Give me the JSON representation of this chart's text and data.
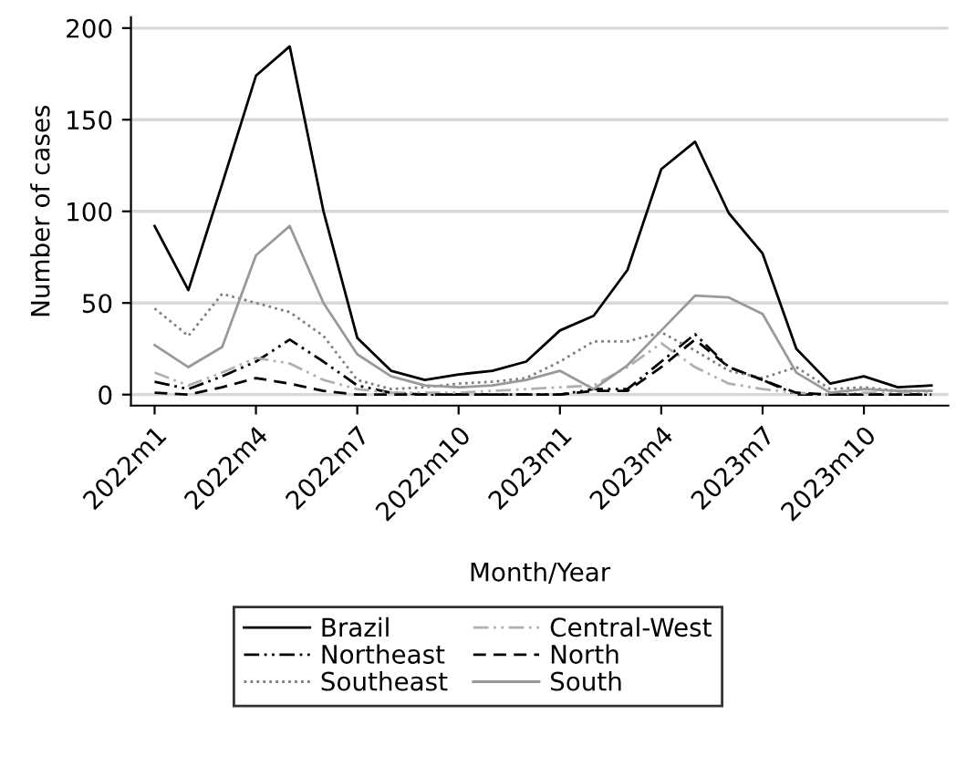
{
  "chart_data": {
    "type": "line",
    "xlabel": "Month/Year",
    "ylabel": "Number of cases",
    "categories": [
      "2022m1",
      null,
      null,
      "2022m4",
      null,
      null,
      "2022m7",
      null,
      null,
      "2022m10",
      null,
      null,
      "2023m1",
      null,
      null,
      "2023m4",
      null,
      null,
      "2023m7",
      null,
      null,
      "2023m10",
      null,
      null
    ],
    "series": [
      {
        "name": "Brazil",
        "color": "#000000",
        "line_style": "solid",
        "values": [
          92,
          57,
          115,
          174,
          190,
          100,
          31,
          13,
          8,
          11,
          13,
          18,
          35,
          43,
          68,
          123,
          138,
          99,
          77,
          25,
          6,
          10,
          4,
          5
        ]
      },
      {
        "name": "Northeast",
        "color": "#000000",
        "line_style": "dashdot",
        "values": [
          7,
          3,
          10,
          18,
          30,
          18,
          5,
          1,
          0,
          0,
          0,
          0,
          0,
          3,
          3,
          18,
          33,
          15,
          8,
          0,
          0,
          0,
          0,
          0
        ]
      },
      {
        "name": "Southeast",
        "color": "#808080",
        "line_style": "dotted",
        "values": [
          47,
          32,
          55,
          50,
          45,
          32,
          8,
          3,
          4,
          6,
          7,
          9,
          18,
          29,
          29,
          34,
          24,
          13,
          9,
          15,
          3,
          4,
          2,
          2
        ]
      },
      {
        "name": "Central-West",
        "color": "#b0b0b0",
        "line_style": "dashdot",
        "values": [
          12,
          5,
          12,
          20,
          17,
          8,
          3,
          1,
          1,
          1,
          2,
          3,
          4,
          5,
          15,
          28,
          15,
          6,
          3,
          1,
          0,
          1,
          1,
          1
        ]
      },
      {
        "name": "North",
        "color": "#000000",
        "line_style": "dashed",
        "values": [
          1,
          0,
          4,
          9,
          6,
          2,
          0,
          0,
          0,
          0,
          0,
          0,
          0,
          2,
          2,
          15,
          30,
          15,
          8,
          1,
          0,
          0,
          0,
          0
        ]
      },
      {
        "name": "South",
        "color": "#999999",
        "line_style": "solid",
        "values": [
          27,
          15,
          26,
          76,
          92,
          50,
          22,
          10,
          5,
          4,
          5,
          8,
          13,
          3,
          16,
          35,
          54,
          53,
          44,
          12,
          1,
          3,
          2,
          2
        ]
      }
    ],
    "ylim": [
      -6,
      206
    ],
    "yticks": [
      0,
      50,
      100,
      150,
      200
    ],
    "grid": "y",
    "legend": "bottom"
  }
}
